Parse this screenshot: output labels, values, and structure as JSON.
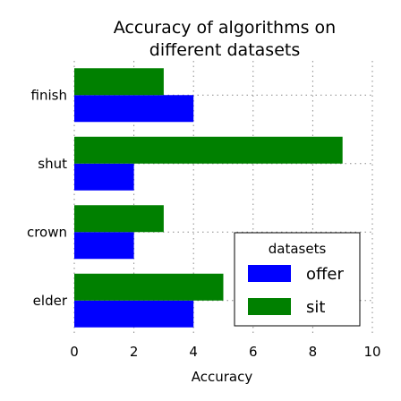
{
  "chart_data": {
    "type": "bar",
    "orientation": "horizontal",
    "title": "Accuracy of algorithms on different datasets",
    "title_lines": [
      "Accuracy of algorithms on",
      "different datasets"
    ],
    "xlabel": "Accuracy",
    "ylabel": "",
    "categories": [
      "elder",
      "crown",
      "shut",
      "finish"
    ],
    "series": [
      {
        "name": "offer",
        "color": "#0000ff",
        "values": [
          4,
          2,
          2,
          4
        ]
      },
      {
        "name": "sit",
        "color": "#008000",
        "values": [
          5,
          3,
          9,
          3
        ]
      }
    ],
    "xlim": [
      0,
      10
    ],
    "xticks": [
      "0",
      "2",
      "4",
      "6",
      "8",
      "10"
    ],
    "grid": true,
    "legend": {
      "title": "datasets",
      "placement": "lower-right"
    }
  }
}
